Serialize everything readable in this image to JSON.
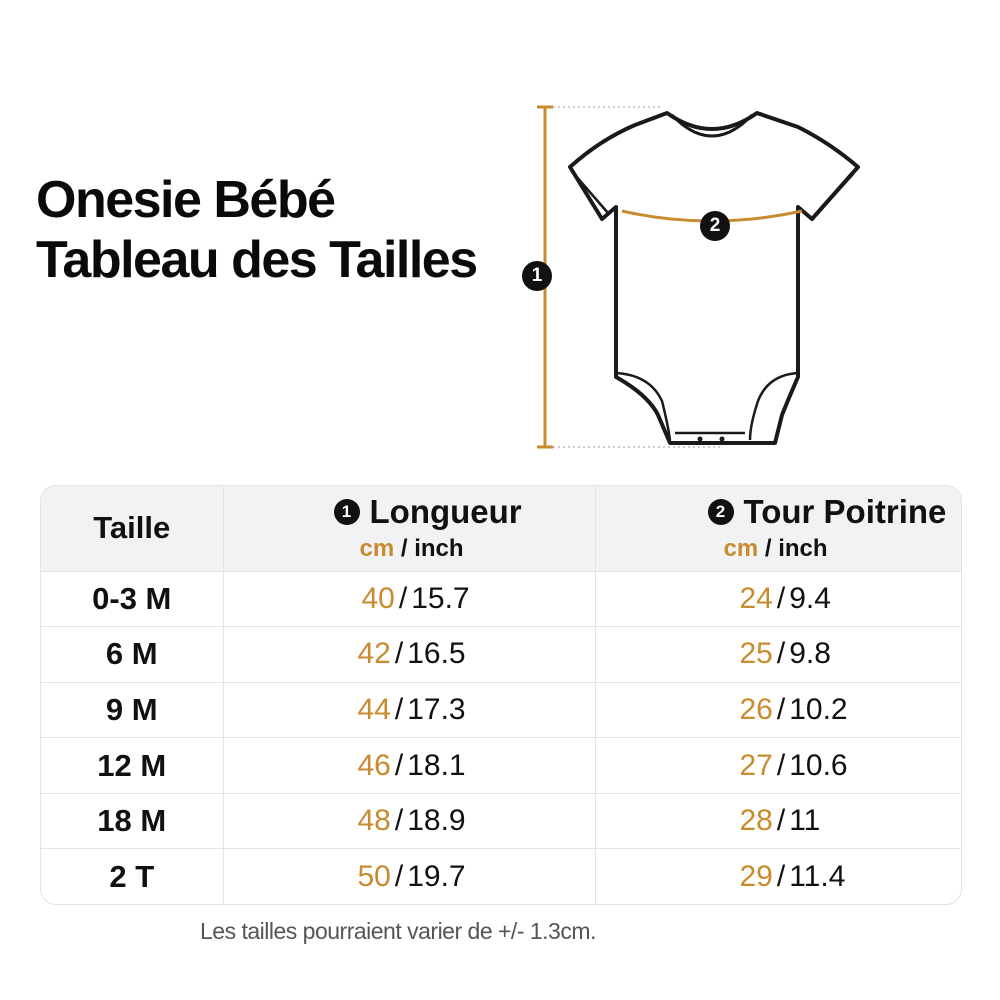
{
  "header": {
    "title_line1": "Onesie Bébé",
    "title_line2": "Tableau des Tailles"
  },
  "diagram": {
    "badge_length": "1",
    "badge_chest": "2",
    "garment_icon": "baby-onesie-icon",
    "accent_color": "#c98b2f"
  },
  "table": {
    "size_header": "Taille",
    "length": {
      "badge": "1",
      "title": "Longueur",
      "unit_cm": "cm",
      "unit_sep": "/",
      "unit_inch": "inch"
    },
    "chest": {
      "badge": "2",
      "title": "Tour Poitrine",
      "unit_cm": "cm",
      "unit_sep": "/",
      "unit_inch": "inch"
    },
    "separator": "/",
    "rows": [
      {
        "size": "0-3 M",
        "length_cm": "40",
        "length_in": "15.7",
        "chest_cm": "24",
        "chest_in": "9.4"
      },
      {
        "size": "6 M",
        "length_cm": "42",
        "length_in": "16.5",
        "chest_cm": "25",
        "chest_in": "9.8"
      },
      {
        "size": "9 M",
        "length_cm": "44",
        "length_in": "17.3",
        "chest_cm": "26",
        "chest_in": "10.2"
      },
      {
        "size": "12 M",
        "length_cm": "46",
        "length_in": "18.1",
        "chest_cm": "27",
        "chest_in": "10.6"
      },
      {
        "size": "18 M",
        "length_cm": "48",
        "length_in": "18.9",
        "chest_cm": "28",
        "chest_in": "11"
      },
      {
        "size": "2 T",
        "length_cm": "50",
        "length_in": "19.7",
        "chest_cm": "29",
        "chest_in": "11.4"
      }
    ]
  },
  "footnote": "Les tailles pourraient varier de +/- 1.3cm."
}
